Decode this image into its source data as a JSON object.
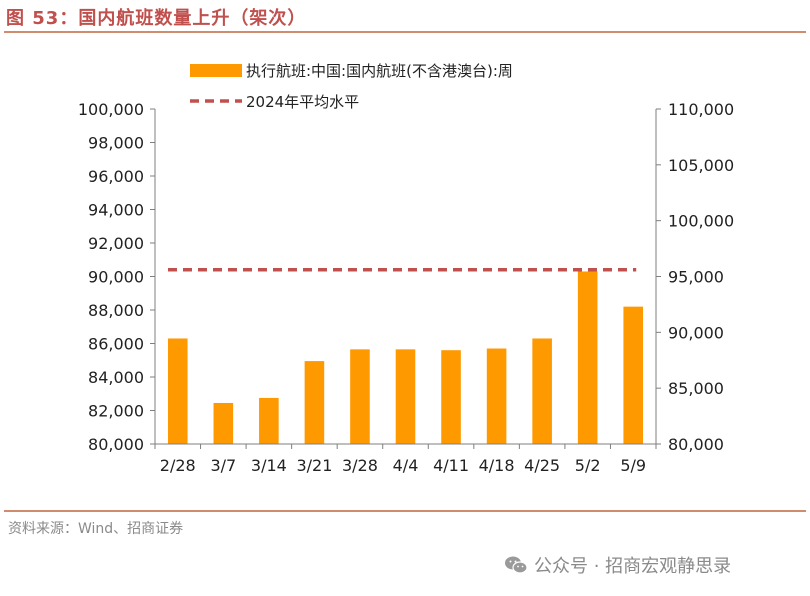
{
  "figure": {
    "title": "图 53：国内航班数量上升（架次）",
    "source": "资料来源：Wind、招商证券",
    "watermark": "公众号 · 招商宏观静思录",
    "watermark_icon": "wechat-icon"
  },
  "chart_data": {
    "type": "bar",
    "categories": [
      "2/28",
      "3/7",
      "3/14",
      "3/21",
      "3/28",
      "4/4",
      "4/11",
      "4/18",
      "4/25",
      "5/2",
      "5/9"
    ],
    "series": [
      {
        "name": "执行航班:中国:国内航班(不含港澳台):周",
        "type": "bar",
        "axis": "left",
        "color": "#ff9900",
        "values": [
          86300,
          82450,
          82750,
          84950,
          85650,
          85650,
          85600,
          85700,
          86300,
          90300,
          88200
        ]
      },
      {
        "name": "2024年平均水平",
        "type": "line",
        "style": "dashed",
        "axis": "left",
        "color": "#c0504d",
        "value": 90400
      }
    ],
    "left_axis": {
      "ylim": [
        80000,
        100000
      ],
      "ticks": [
        80000,
        82000,
        84000,
        86000,
        88000,
        90000,
        92000,
        94000,
        96000,
        98000,
        100000
      ],
      "tick_labels": [
        "80,000",
        "82,000",
        "84,000",
        "86,000",
        "88,000",
        "90,000",
        "92,000",
        "94,000",
        "96,000",
        "98,000",
        "100,000"
      ]
    },
    "right_axis": {
      "ylim": [
        80000,
        110000
      ],
      "ticks": [
        80000,
        85000,
        90000,
        95000,
        100000,
        105000,
        110000
      ],
      "tick_labels": [
        "80,000",
        "85,000",
        "90,000",
        "95,000",
        "100,000",
        "105,000",
        "110,000"
      ]
    },
    "grid": false,
    "legend_position": "top"
  }
}
